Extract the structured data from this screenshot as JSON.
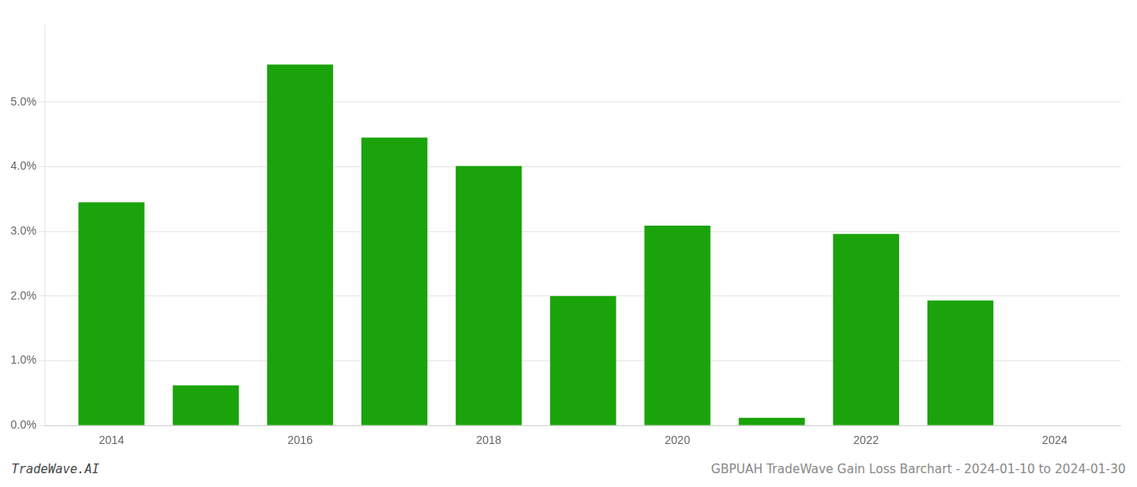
{
  "chart_data": {
    "type": "bar",
    "x": [
      2014,
      2015,
      2016,
      2017,
      2018,
      2019,
      2020,
      2021,
      2022,
      2023
    ],
    "values": [
      0.0345,
      0.0062,
      0.0558,
      0.0445,
      0.0401,
      0.02,
      0.0309,
      0.0012,
      0.0296,
      0.0193
    ],
    "color": "#1aa30a",
    "xlim": [
      2013.3,
      2024.7
    ],
    "xticks": [
      2014,
      2016,
      2018,
      2020,
      2022,
      2024
    ],
    "ylim": [
      0,
      0.062
    ],
    "yticks": [
      {
        "value": 0.0,
        "label": "0.0%"
      },
      {
        "value": 0.01,
        "label": "1.0%"
      },
      {
        "value": 0.02,
        "label": "2.0%"
      },
      {
        "value": 0.03,
        "label": "3.0%"
      },
      {
        "value": 0.04,
        "label": "4.0%"
      },
      {
        "value": 0.05,
        "label": "5.0%"
      }
    ],
    "grid": "y",
    "footer_left": "TradeWave.AI",
    "footer_right": "GBPUAH TradeWave Gain Loss Barchart - 2024-01-10 to 2024-01-30"
  }
}
